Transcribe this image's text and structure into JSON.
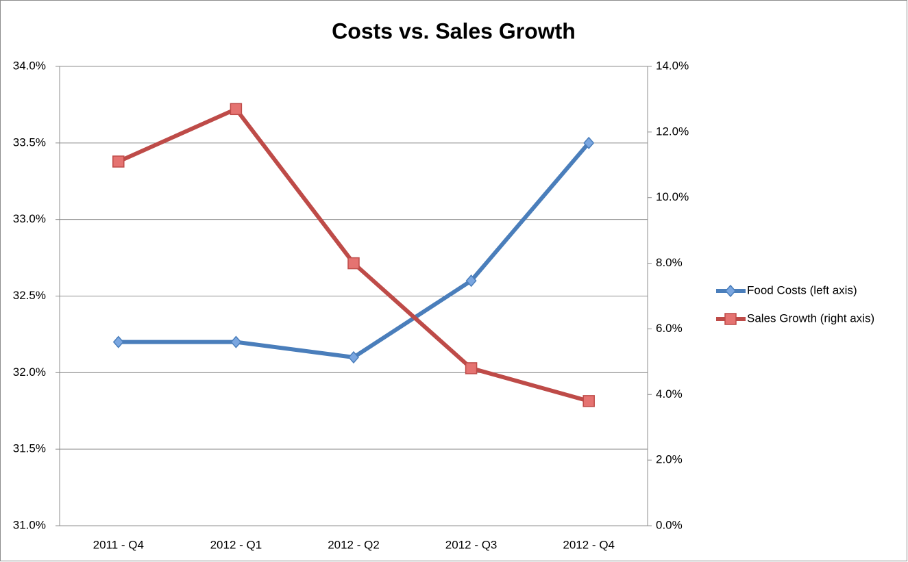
{
  "chart_data": {
    "type": "line",
    "title": "Costs vs. Sales Growth",
    "categories": [
      "2011 - Q4",
      "2012 - Q1",
      "2012 - Q2",
      "2012 - Q3",
      "2012 - Q4"
    ],
    "series": [
      {
        "name": "Food Costs (left axis)",
        "color": "#4a7ebb",
        "marker": "diamond",
        "values": [
          32.2,
          32.2,
          32.1,
          32.6,
          33.5
        ]
      },
      {
        "name": "Sales Growth (right axis)",
        "color": "#be4b48",
        "marker": "square",
        "axis": "y2",
        "values": [
          11.1,
          12.7,
          8.0,
          4.8,
          3.8
        ]
      }
    ],
    "ylim": [
      31.0,
      34.0
    ],
    "yticks": [
      {
        "value": 31.0,
        "label": "31.0%"
      },
      {
        "value": 31.5,
        "label": "31.5%"
      },
      {
        "value": 32.0,
        "label": "32.0%"
      },
      {
        "value": 32.5,
        "label": "32.5%"
      },
      {
        "value": 33.0,
        "label": "33.0%"
      },
      {
        "value": 33.5,
        "label": "33.5%"
      },
      {
        "value": 34.0,
        "label": "34.0%"
      }
    ],
    "y2lim": [
      0,
      14
    ],
    "y2ticks": [
      {
        "value": 0,
        "label": "0.0%"
      },
      {
        "value": 2,
        "label": "2.0%"
      },
      {
        "value": 4,
        "label": "4.0%"
      },
      {
        "value": 6,
        "label": "6.0%"
      },
      {
        "value": 8,
        "label": "8.0%"
      },
      {
        "value": 10,
        "label": "10.0%"
      },
      {
        "value": 12,
        "label": "12.0%"
      },
      {
        "value": 14,
        "label": "14.0%"
      }
    ],
    "grid": true,
    "legend": "right"
  }
}
